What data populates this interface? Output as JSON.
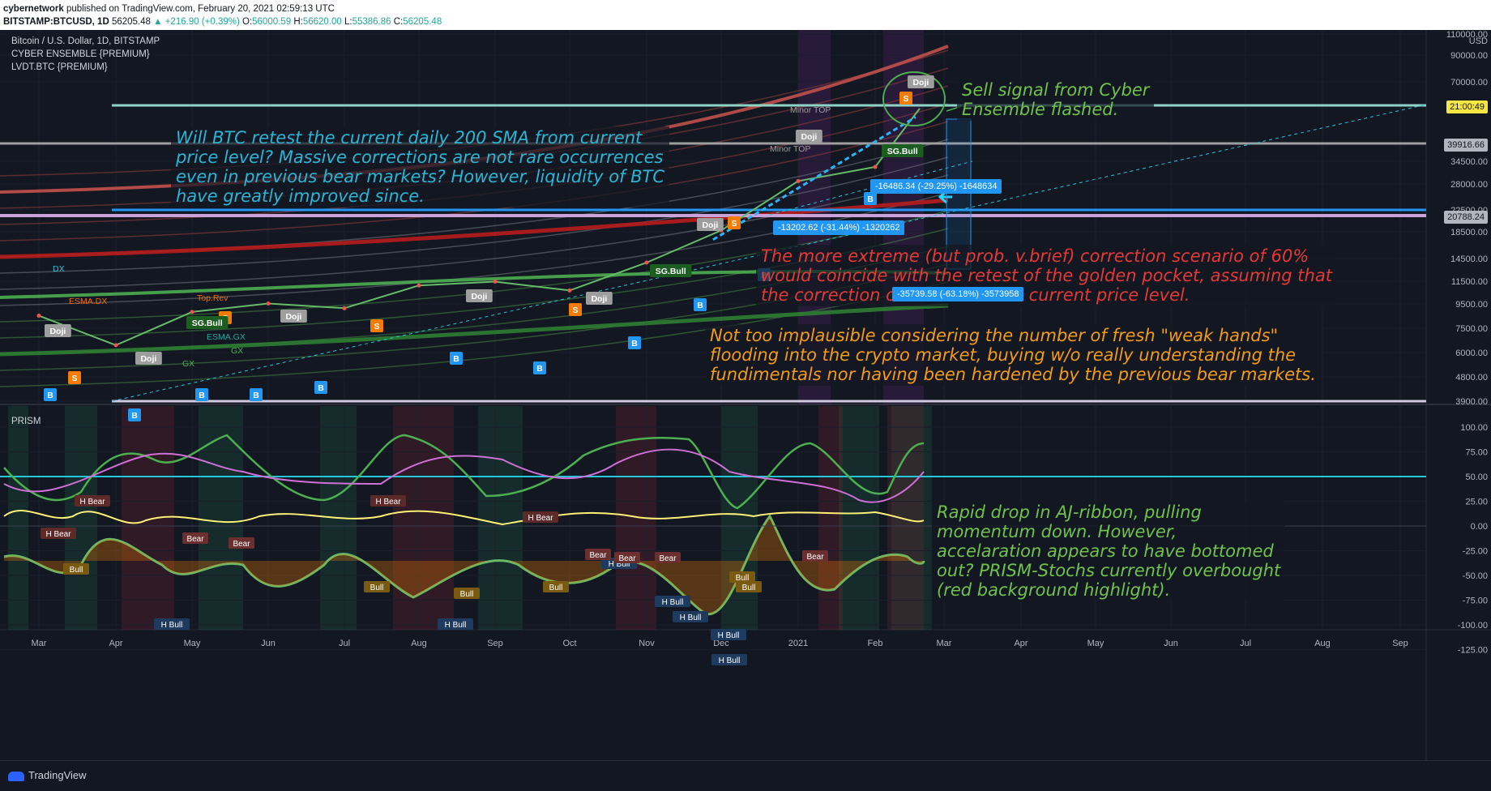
{
  "header": {
    "author": "cybernetwork",
    "published_on": "published on TradingView.com, February 20, 2021 02:59:13 UTC",
    "symbol": "BITSTAMP:BTCUSD, 1D",
    "last": "56205.48",
    "change": "▲ +216.90 (+0.39%)",
    "ohlc": {
      "o_label": "O:",
      "o": "56000.59",
      "h_label": "H:",
      "h": "56620.00",
      "l_label": "L:",
      "l": "55386.86",
      "c_label": "C:",
      "c": "56205.48"
    }
  },
  "legend": {
    "title": "Bitcoin / U.S. Dollar, 1D, BITSTAMP",
    "ind1": "CYBER ENSEMBLE {PREMIUM}",
    "ind2": "LVDT.BTC {PREMIUM}",
    "prism": "PRISM"
  },
  "price_axis": {
    "currency": "USD",
    "ticks": [
      "110000.00",
      "90000.00",
      "70000.00",
      "34500.00",
      "28000.00",
      "22500.00",
      "18500.00",
      "14500.00",
      "11500.00",
      "9500.00",
      "7500.00",
      "6000.00",
      "4800.00",
      "3900.00"
    ],
    "labels": {
      "time_left": "21:00:49",
      "level_high": "39916.66",
      "level_low": "20788.24"
    }
  },
  "prism_axis": {
    "ticks": [
      "100.00",
      "75.00",
      "50.00",
      "25.00",
      "0.00",
      "-25.00",
      "-50.00",
      "-75.00",
      "-100.00",
      "-125.00"
    ]
  },
  "time_axis": {
    "ticks": [
      "Mar",
      "Apr",
      "May",
      "Jun",
      "Jul",
      "Aug",
      "Sep",
      "Oct",
      "Nov",
      "Dec",
      "2021",
      "Feb",
      "Mar",
      "Apr",
      "May",
      "Jun",
      "Jul",
      "Aug",
      "Sep"
    ]
  },
  "annotations": {
    "sell_signal": "Sell signal from Cyber\nEnsemble flashed.",
    "retest": "Will BTC retest the current daily 200 SMA from current\nprice level? Massive corrections are not rare occurrences\neven in previous bear markets? However, liquidity of BTC\nhave greatly improved since.",
    "extreme": "The more extreme (but prob. v.brief) correction scenario of 60%\nwould coincide with the retest of the golden pocket, assuming that\nthe correction occurs from this current price level.",
    "weak_hands": "Not too implausible considering the number of fresh \"weak hands\"\nflooding into the crypto market, buying w/o really understanding the\nfundimentals nor having been hardened by the previous bear markets.",
    "prism_note": "Rapid drop in AJ-ribbon, pulling\nmomentum down. However,\naccelaration appears to have bottomed\nout? PRISM-Stochs currently overbought\n(red background highlight)."
  },
  "measures": [
    "-16486.34 (-29.25%) -1648634",
    "-13202.62 (-31.44%) -1320262",
    "-35739.58 (-63.18%) -3573958"
  ],
  "signal_labels": {
    "doji": "Doji",
    "s": "S",
    "b": "B",
    "dx": "DX",
    "esma_dx": "ESMA.DX",
    "gx": "GX",
    "esma_gx": "ESMA.GX",
    "sg_bull": "SG.Bull",
    "top_rev": "Top.Rev",
    "minor_top": "Minor TOP",
    "h_bear": "H Bear",
    "h_bull": "H Bull",
    "bear": "Bear",
    "bull": "Bull"
  },
  "footer": {
    "brand": "TradingView"
  },
  "colors": {
    "bg": "#131722",
    "sell_note": "#6fc24a",
    "retest_note": "#29b6d6",
    "extreme_note": "#e53935",
    "weak_note": "#f39c12",
    "measure": "#2196f3"
  },
  "chart_data": [
    {
      "type": "line",
      "title": "Bitcoin / U.S. Dollar, 1D, BITSTAMP",
      "xlabel": "",
      "ylabel": "",
      "scale": "log",
      "ylim": [
        3900,
        110000
      ],
      "x": [
        "Mar",
        "Apr",
        "May",
        "Jun",
        "Jul",
        "Aug",
        "Sep",
        "Oct",
        "Nov",
        "Dec",
        "2021",
        "Feb"
      ],
      "series": [
        {
          "values": [
            8500,
            6500,
            8800,
            9500,
            9100,
            11200,
            11600,
            10700,
            13800,
            18500,
            29000,
            33000
          ]
        }
      ],
      "horizontal_levels": [
        39916.66,
        20788.24
      ],
      "last_price": 56205.48
    },
    {
      "type": "line",
      "title": "PRISM",
      "ylim": [
        -125,
        100
      ],
      "x": [
        "Mar",
        "Apr",
        "May",
        "Jun",
        "Jul",
        "Aug",
        "Sep",
        "Oct",
        "Nov",
        "Dec",
        "2021",
        "Feb"
      ],
      "overbought_level": 50
    }
  ]
}
